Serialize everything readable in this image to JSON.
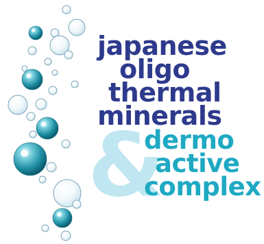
{
  "colors": {
    "navy": "#2e3a8c",
    "teal": "#1fa9c3",
    "ampersand": "#bfe6f1",
    "bubble_dark": "#1f8fa3",
    "bubble_light": "#cfe6f0"
  },
  "title_lines": [
    "japanese",
    "oligo",
    "thermal",
    "minerals"
  ],
  "ampersand": "&",
  "sub_lines": [
    "dermo",
    "active",
    "complex"
  ],
  "decoration": "water-bubbles"
}
